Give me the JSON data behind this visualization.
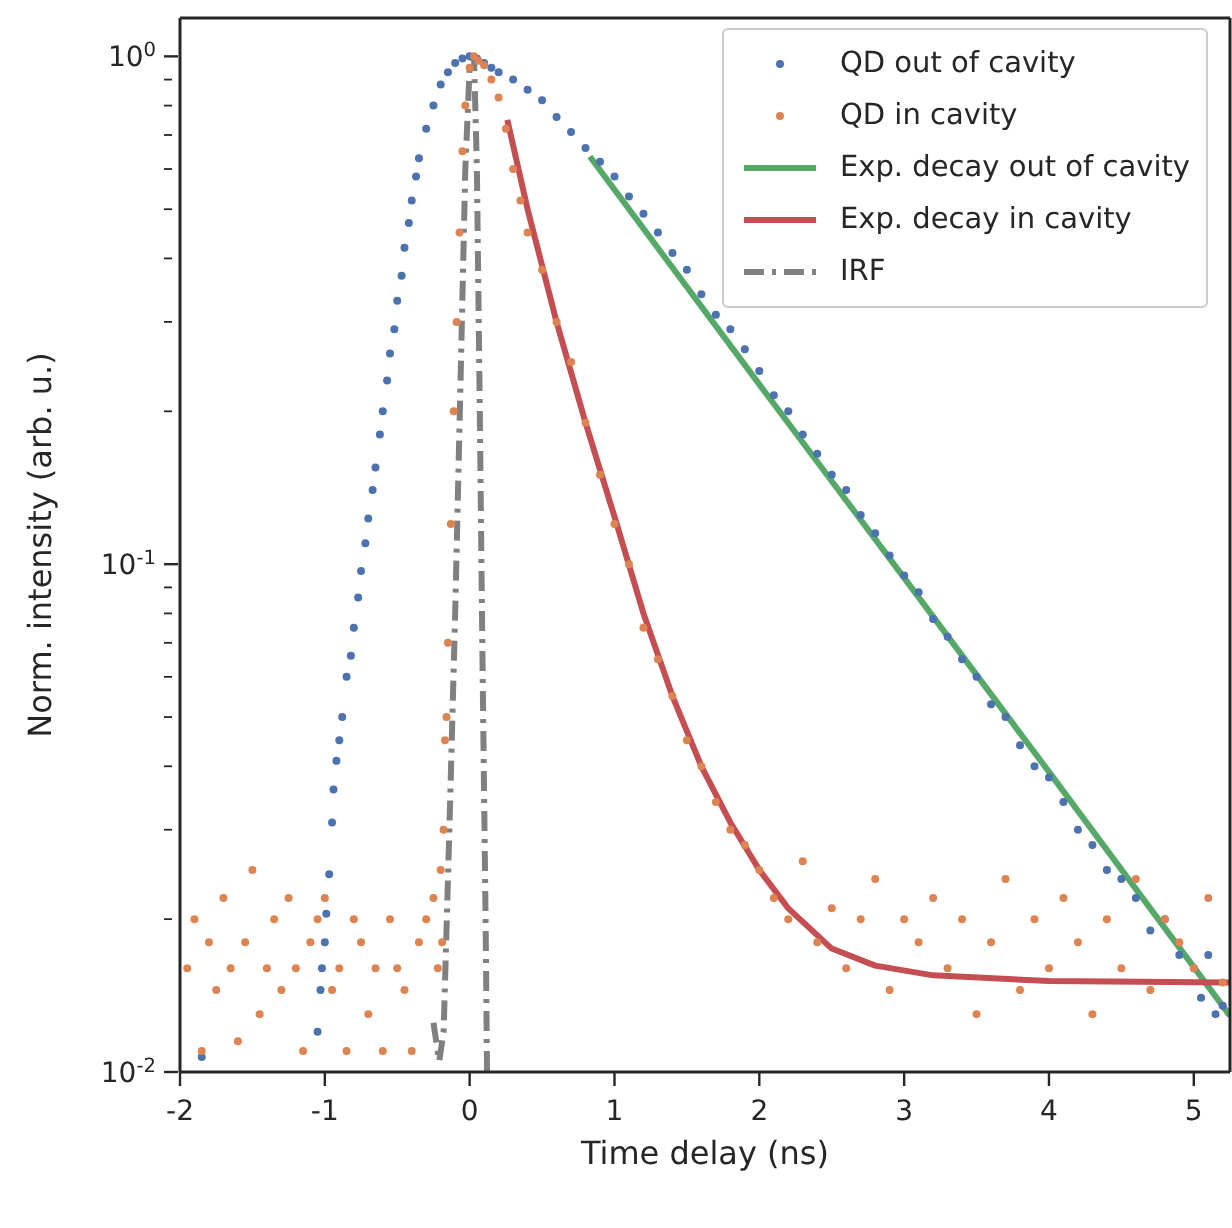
{
  "chart_data": {
    "type": "scatter",
    "xlabel": "Time delay (ns)",
    "ylabel": "Norm. intensity (arb. u.)",
    "log": "y",
    "xlim": [
      -2,
      5.25
    ],
    "xticks": [
      -2,
      -1,
      0,
      1,
      2,
      3,
      4,
      5
    ],
    "ylim": [
      0.01,
      1.19
    ],
    "yticks": [
      {
        "value": 0.01,
        "label": "10$^{-2}$"
      },
      {
        "value": 0.02,
        "label": null
      },
      {
        "value": 0.03,
        "label": null
      },
      {
        "value": 0.04,
        "label": null
      },
      {
        "value": 0.05,
        "label": null
      },
      {
        "value": 0.06,
        "label": null
      },
      {
        "value": 0.07,
        "label": null
      },
      {
        "value": 0.08,
        "label": null
      },
      {
        "value": 0.09,
        "label": null
      },
      {
        "value": 0.1,
        "label": "10$^{-1}$"
      },
      {
        "value": 0.2,
        "label": null
      },
      {
        "value": 0.3,
        "label": null
      },
      {
        "value": 0.4,
        "label": null
      },
      {
        "value": 0.5,
        "label": null
      },
      {
        "value": 0.6,
        "label": null
      },
      {
        "value": 0.7,
        "label": null
      },
      {
        "value": 0.8,
        "label": null
      },
      {
        "value": 0.9,
        "label": null
      },
      {
        "value": 1,
        "label": "10$^{0}$"
      }
    ],
    "grid": false,
    "legend": "top right",
    "series": [
      {
        "name": "QD out of cavity",
        "marker": "circle",
        "color": "#4c72b0",
        "x": [
          -1.85,
          -1.05,
          -1.03,
          -1.02,
          -1.0,
          -0.99,
          -0.97,
          -0.95,
          -0.94,
          -0.92,
          -0.9,
          -0.88,
          -0.85,
          -0.82,
          -0.8,
          -0.77,
          -0.75,
          -0.72,
          -0.7,
          -0.67,
          -0.65,
          -0.62,
          -0.6,
          -0.57,
          -0.55,
          -0.52,
          -0.5,
          -0.47,
          -0.45,
          -0.42,
          -0.4,
          -0.37,
          -0.35,
          -0.3,
          -0.25,
          -0.2,
          -0.15,
          -0.1,
          -0.05,
          0.0,
          0.05,
          0.1,
          0.15,
          0.2,
          0.3,
          0.4,
          0.5,
          0.6,
          0.7,
          0.8,
          0.9,
          1.0,
          1.1,
          1.2,
          1.3,
          1.4,
          1.5,
          1.6,
          1.7,
          1.8,
          1.9,
          2.0,
          2.1,
          2.2,
          2.3,
          2.4,
          2.5,
          2.6,
          2.7,
          2.8,
          2.9,
          3.0,
          3.1,
          3.2,
          3.3,
          3.4,
          3.5,
          3.6,
          3.7,
          3.8,
          3.9,
          4.0,
          4.1,
          4.2,
          4.3,
          4.4,
          4.5,
          4.6,
          4.7,
          4.8,
          4.9,
          5.0,
          5.05,
          5.1,
          5.15,
          5.2
        ],
        "values": [
          0.0107,
          0.012,
          0.0145,
          0.016,
          0.018,
          0.0205,
          0.0245,
          0.031,
          0.036,
          0.041,
          0.045,
          0.05,
          0.06,
          0.066,
          0.075,
          0.086,
          0.097,
          0.11,
          0.123,
          0.14,
          0.155,
          0.18,
          0.2,
          0.23,
          0.26,
          0.29,
          0.33,
          0.37,
          0.42,
          0.47,
          0.52,
          0.58,
          0.63,
          0.72,
          0.8,
          0.88,
          0.93,
          0.97,
          0.99,
          1.0,
          0.99,
          0.97,
          0.95,
          0.93,
          0.9,
          0.86,
          0.82,
          0.76,
          0.71,
          0.66,
          0.62,
          0.58,
          0.53,
          0.49,
          0.45,
          0.41,
          0.38,
          0.34,
          0.31,
          0.29,
          0.265,
          0.24,
          0.215,
          0.2,
          0.18,
          0.165,
          0.15,
          0.14,
          0.125,
          0.115,
          0.104,
          0.095,
          0.088,
          0.078,
          0.072,
          0.065,
          0.06,
          0.053,
          0.05,
          0.044,
          0.04,
          0.038,
          0.034,
          0.03,
          0.028,
          0.025,
          0.024,
          0.022,
          0.019,
          0.02,
          0.017,
          0.016,
          0.014,
          0.017,
          0.013,
          0.0135
        ]
      },
      {
        "name": "QD in cavity",
        "marker": "circle",
        "color": "#dd8452",
        "x": [
          -1.95,
          -1.9,
          -1.85,
          -1.8,
          -1.75,
          -1.7,
          -1.65,
          -1.6,
          -1.55,
          -1.5,
          -1.45,
          -1.4,
          -1.35,
          -1.3,
          -1.25,
          -1.2,
          -1.15,
          -1.1,
          -1.05,
          -1.0,
          -0.95,
          -0.9,
          -0.85,
          -0.8,
          -0.75,
          -0.7,
          -0.65,
          -0.6,
          -0.55,
          -0.5,
          -0.45,
          -0.4,
          -0.35,
          -0.3,
          -0.25,
          -0.22,
          -0.2,
          -0.19,
          -0.18,
          -0.17,
          -0.16,
          -0.15,
          -0.13,
          -0.11,
          -0.09,
          -0.07,
          -0.05,
          -0.03,
          0.0,
          0.03,
          0.06,
          0.1,
          0.15,
          0.2,
          0.25,
          0.3,
          0.35,
          0.4,
          0.5,
          0.6,
          0.7,
          0.8,
          0.9,
          1.0,
          1.1,
          1.2,
          1.3,
          1.4,
          1.5,
          1.6,
          1.7,
          1.8,
          1.9,
          2.0,
          2.1,
          2.2,
          2.3,
          2.4,
          2.5,
          2.6,
          2.7,
          2.8,
          2.9,
          3.0,
          3.1,
          3.2,
          3.3,
          3.4,
          3.5,
          3.6,
          3.7,
          3.8,
          3.9,
          4.0,
          4.1,
          4.2,
          4.3,
          4.4,
          4.5,
          4.6,
          4.7,
          4.8,
          4.9,
          5.0,
          5.1,
          5.2
        ],
        "values": [
          0.016,
          0.02,
          0.011,
          0.018,
          0.0145,
          0.022,
          0.016,
          0.0115,
          0.018,
          0.025,
          0.013,
          0.016,
          0.02,
          0.0145,
          0.022,
          0.016,
          0.011,
          0.018,
          0.02,
          0.022,
          0.0145,
          0.016,
          0.011,
          0.02,
          0.018,
          0.013,
          0.016,
          0.011,
          0.02,
          0.016,
          0.0145,
          0.011,
          0.018,
          0.02,
          0.022,
          0.016,
          0.025,
          0.018,
          0.03,
          0.045,
          0.05,
          0.07,
          0.12,
          0.2,
          0.3,
          0.45,
          0.65,
          0.8,
          0.95,
          1.0,
          0.98,
          0.96,
          0.9,
          0.83,
          0.72,
          0.6,
          0.52,
          0.45,
          0.38,
          0.3,
          0.25,
          0.19,
          0.15,
          0.12,
          0.1,
          0.075,
          0.065,
          0.055,
          0.045,
          0.04,
          0.034,
          0.03,
          0.028,
          0.025,
          0.022,
          0.02,
          0.026,
          0.018,
          0.021,
          0.016,
          0.02,
          0.024,
          0.0145,
          0.02,
          0.018,
          0.022,
          0.016,
          0.02,
          0.013,
          0.018,
          0.024,
          0.0145,
          0.02,
          0.016,
          0.022,
          0.018,
          0.013,
          0.02,
          0.016,
          0.024,
          0.0145,
          0.02,
          0.018,
          0.016,
          0.022,
          0.015
        ]
      },
      {
        "name": "Exp. decay out of cavity",
        "type": "line",
        "marker": "none",
        "line_style": "solid",
        "color": "#55a868",
        "x": [
          0.83,
          2,
          3,
          4,
          5.25
        ],
        "values": [
          0.635,
          0.226,
          0.094,
          0.039,
          0.0129
        ]
      },
      {
        "name": "Exp. decay in cavity",
        "type": "line",
        "marker": "none",
        "line_style": "solid",
        "color": "#c44e52",
        "x": [
          0.26,
          0.4,
          0.6,
          0.8,
          1.0,
          1.2,
          1.4,
          1.6,
          1.8,
          2.0,
          2.2,
          2.5,
          2.8,
          3.2,
          4.0,
          5.25
        ],
        "values": [
          0.75,
          0.5,
          0.3,
          0.19,
          0.124,
          0.08,
          0.055,
          0.04,
          0.031,
          0.025,
          0.021,
          0.0175,
          0.0162,
          0.0155,
          0.0151,
          0.015
        ]
      },
      {
        "name": "IRF",
        "type": "line",
        "marker": "none",
        "line_style": "dashdot",
        "color": "#808080",
        "x": [
          -0.25,
          -0.21,
          -0.18,
          -0.14,
          -0.1,
          -0.06,
          -0.03,
          0.0,
          0.03,
          0.05,
          0.07,
          0.09,
          0.11,
          0.12
        ],
        "values": [
          0.0125,
          0.0105,
          0.012,
          0.03,
          0.08,
          0.25,
          0.6,
          0.95,
          1.0,
          0.6,
          0.2,
          0.06,
          0.02,
          0.01
        ]
      }
    ]
  }
}
